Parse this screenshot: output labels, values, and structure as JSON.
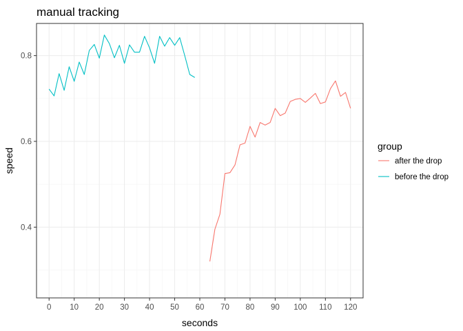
{
  "chart_data": {
    "type": "line",
    "title": "manual tracking",
    "xlabel": "seconds",
    "ylabel": "speed",
    "xlim": [
      -5,
      125
    ],
    "ylim": [
      0.235,
      0.875
    ],
    "x_ticks": [
      0,
      10,
      20,
      30,
      40,
      50,
      60,
      70,
      80,
      90,
      100,
      110,
      120
    ],
    "x_tick_labels": [
      "0",
      "10",
      "20",
      "30",
      "40",
      "50",
      "60",
      "70",
      "80",
      "90",
      "100",
      "110",
      "120"
    ],
    "y_ticks": [
      0.4,
      0.6,
      0.8
    ],
    "y_tick_labels": [
      "0.4",
      "0.6",
      "0.8"
    ],
    "grid": true,
    "legend": {
      "title": "group",
      "position": "right"
    },
    "series": [
      {
        "name": "after the drop",
        "color": "#F8766D",
        "x": [
          64,
          66,
          68,
          70,
          72,
          74,
          76,
          78,
          80,
          82,
          84,
          86,
          88,
          90,
          92,
          94,
          96,
          98,
          100,
          102,
          104,
          106,
          108,
          110,
          112,
          114,
          116,
          118,
          120
        ],
        "y": [
          0.32,
          0.395,
          0.43,
          0.525,
          0.527,
          0.545,
          0.592,
          0.596,
          0.635,
          0.61,
          0.644,
          0.638,
          0.644,
          0.677,
          0.66,
          0.666,
          0.693,
          0.698,
          0.7,
          0.691,
          0.701,
          0.712,
          0.688,
          0.692,
          0.723,
          0.741,
          0.705,
          0.714,
          0.677
        ]
      },
      {
        "name": "before the drop",
        "color": "#00BFC4",
        "x": [
          0,
          2,
          4,
          6,
          8,
          10,
          12,
          14,
          16,
          18,
          20,
          22,
          24,
          26,
          28,
          30,
          32,
          34,
          36,
          38,
          40,
          42,
          44,
          46,
          48,
          50,
          52,
          54,
          56,
          58
        ],
        "y": [
          0.722,
          0.706,
          0.758,
          0.719,
          0.774,
          0.74,
          0.785,
          0.756,
          0.812,
          0.826,
          0.794,
          0.848,
          0.828,
          0.795,
          0.824,
          0.782,
          0.825,
          0.808,
          0.808,
          0.845,
          0.818,
          0.782,
          0.845,
          0.822,
          0.842,
          0.824,
          0.842,
          0.8,
          0.756,
          0.749
        ]
      }
    ]
  }
}
